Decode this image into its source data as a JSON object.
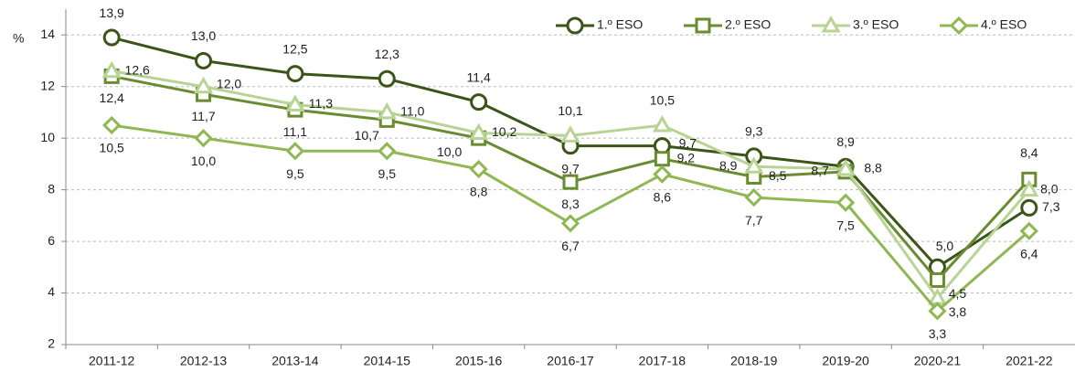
{
  "chart_data": {
    "type": "line",
    "y_label": "%",
    "categories": [
      "2011-12",
      "2012-13",
      "2013-14",
      "2014-15",
      "2015-16",
      "2016-17",
      "2017-18",
      "2018-19",
      "2019-20",
      "2020-21",
      "2021-22"
    ],
    "ylim": [
      2,
      15
    ],
    "yticks": [
      2,
      4,
      6,
      8,
      10,
      12,
      14
    ],
    "grid": true,
    "legend": "top-right",
    "series": [
      {
        "name": "1.º ESO",
        "color": "#3b5519",
        "marker": "circle",
        "values": [
          13.9,
          13.0,
          12.5,
          12.3,
          11.4,
          9.7,
          9.7,
          9.3,
          8.9,
          5.0,
          7.3
        ],
        "value_labels": [
          "13,9",
          "13,0",
          "12,5",
          "12,3",
          "11,4",
          "9,7",
          "9,7",
          "9,3",
          "8,9",
          "5,0",
          "7,3"
        ]
      },
      {
        "name": "2.º ESO",
        "color": "#6a8c30",
        "marker": "square",
        "values": [
          12.4,
          11.7,
          11.1,
          10.7,
          10.0,
          8.3,
          9.2,
          8.5,
          8.7,
          4.5,
          8.4
        ],
        "value_labels": [
          "12,4",
          "11,7",
          "11,1",
          "10,7",
          "10,0",
          "8,3",
          "9,2",
          "8,5",
          "8,7",
          "4,5",
          "8,4"
        ]
      },
      {
        "name": "3.º ESO",
        "color": "#b8d494",
        "marker": "triangle",
        "values": [
          12.6,
          12.0,
          11.3,
          11.0,
          10.2,
          10.1,
          10.5,
          8.9,
          8.8,
          3.8,
          8.0
        ],
        "value_labels": [
          "12,6",
          "12,0",
          "11,3",
          "11,0",
          "10,2",
          "10,1",
          "10,5",
          "8,9",
          "8,8",
          "3,8",
          "8,0"
        ]
      },
      {
        "name": "4.º ESO",
        "color": "#8fb752",
        "marker": "diamond",
        "values": [
          10.5,
          10.0,
          9.5,
          9.5,
          8.8,
          6.7,
          8.6,
          7.7,
          7.5,
          3.3,
          6.4
        ],
        "value_labels": [
          "10,5",
          "10,0",
          "9,5",
          "9,5",
          "8,8",
          "6,7",
          "8,6",
          "7,7",
          "7,5",
          "3,3",
          "6,4"
        ]
      }
    ]
  }
}
